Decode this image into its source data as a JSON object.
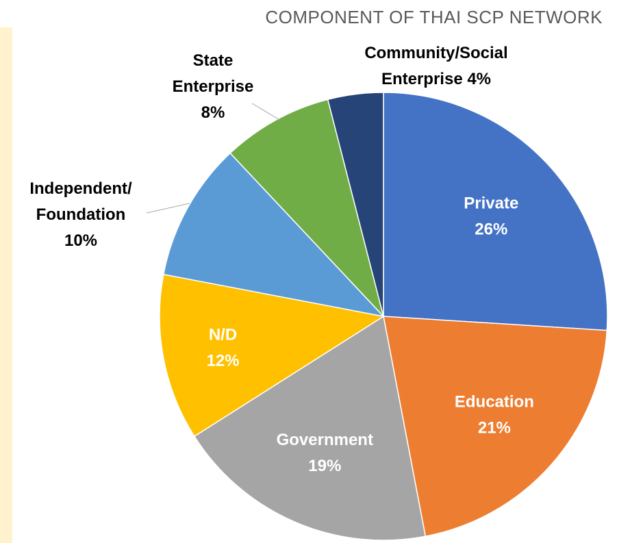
{
  "chart_data": {
    "type": "pie",
    "title": "COMPONENT OF THAI SCP NETWORK",
    "start_angle_deg": 0,
    "direction": "clockwise",
    "slices": [
      {
        "name": "Private",
        "value": 26,
        "label_lines": [
          "Private",
          "26%"
        ],
        "color": "#4472c4",
        "label_position": "inside",
        "label_color": "#ffffff"
      },
      {
        "name": "Education",
        "value": 21,
        "label_lines": [
          "Education",
          "21%"
        ],
        "color": "#ed7d31",
        "label_position": "inside",
        "label_color": "#ffffff"
      },
      {
        "name": "Government",
        "value": 19,
        "label_lines": [
          "Government",
          "19%"
        ],
        "color": "#a5a5a5",
        "label_position": "inside",
        "label_color": "#ffffff"
      },
      {
        "name": "N/D",
        "value": 12,
        "label_lines": [
          "N/D",
          "12%"
        ],
        "color": "#ffc000",
        "label_position": "inside",
        "label_color": "#ffffff"
      },
      {
        "name": "Independent/ Foundation",
        "value": 10,
        "label_lines": [
          "Independent/",
          "Foundation",
          "10%"
        ],
        "color": "#5b9bd5",
        "label_position": "outside",
        "label_color": "#000000"
      },
      {
        "name": "State Enterprise",
        "value": 8,
        "label_lines": [
          "State",
          "Enterprise",
          "8%"
        ],
        "color": "#70ad47",
        "label_position": "outside",
        "label_color": "#000000"
      },
      {
        "name": "Community/Social Enterprise",
        "value": 4,
        "label_lines": [
          "Community/Social",
          "Enterprise 4%"
        ],
        "color": "#264478",
        "label_position": "outside",
        "label_color": "#000000"
      }
    ]
  }
}
